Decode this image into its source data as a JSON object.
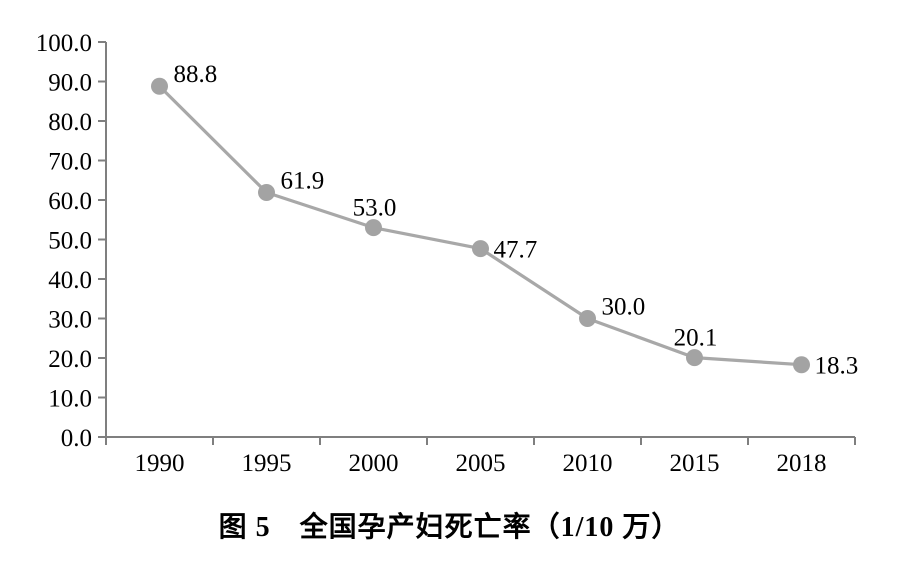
{
  "chart_data": {
    "type": "line",
    "title": "图 5　全国孕产妇死亡率（1/10 万）",
    "categories": [
      "1990",
      "1995",
      "2000",
      "2005",
      "2010",
      "2015",
      "2018"
    ],
    "series": [
      {
        "name": "全国孕产妇死亡率",
        "values": [
          88.8,
          61.9,
          53.0,
          47.7,
          30.0,
          20.1,
          18.3
        ],
        "point_labels": [
          "88.8",
          "61.9",
          "53.0",
          "47.7",
          "30.0",
          "20.1",
          "18.3"
        ],
        "label_placements": [
          "above-right",
          "above-right",
          "above",
          "right",
          "above-right",
          "above",
          "right"
        ]
      }
    ],
    "ylim": [
      0,
      100
    ],
    "ytick_step": 10,
    "ytick_labels": [
      "0.0",
      "10.0",
      "20.0",
      "30.0",
      "40.0",
      "50.0",
      "60.0",
      "70.0",
      "80.0",
      "90.0",
      "100.0"
    ],
    "xlabel": "",
    "ylabel": "",
    "grid": false,
    "legend_position": "none",
    "colors": {
      "line": "#a8a8a8",
      "marker": "#a3a3a3",
      "axis": "#7f7f7f",
      "text": "#000000",
      "background": "#ffffff"
    }
  }
}
